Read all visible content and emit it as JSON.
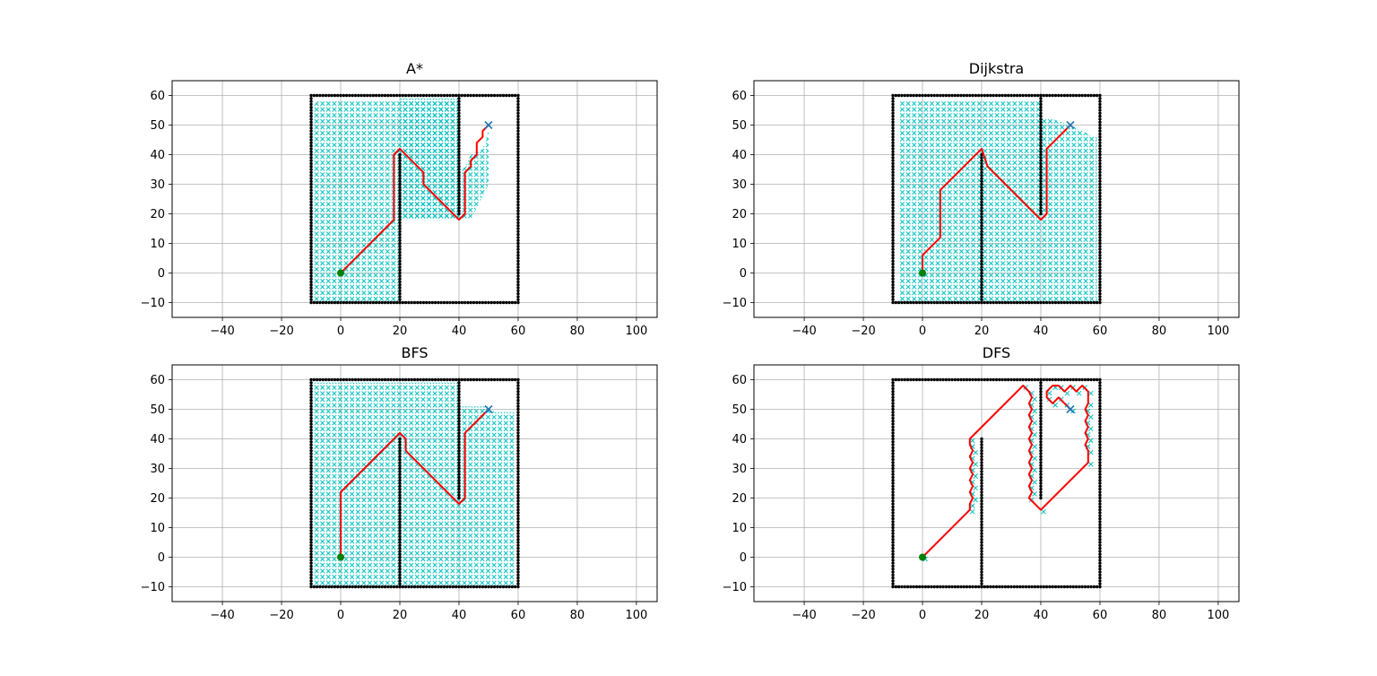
{
  "colors": {
    "obstacle": "#000000",
    "explored": "#00bfbf",
    "path": "#ff0000",
    "start": "#008000",
    "goal": "#1f77b4",
    "grid": "#b0b0b0"
  },
  "chart_data": [
    {
      "type": "scatter",
      "title": "A*",
      "xlim": [
        -57,
        107
      ],
      "ylim": [
        -15,
        65
      ],
      "xticks": [
        -40,
        -20,
        0,
        20,
        40,
        60,
        80,
        100
      ],
      "yticks": [
        -10,
        0,
        10,
        20,
        30,
        40,
        50,
        60
      ],
      "grid": true,
      "start": [
        0,
        0
      ],
      "goal": [
        50,
        50
      ],
      "explored_regions": [
        [
          [
            -10,
            -10
          ],
          [
            -10,
            56
          ],
          [
            -8,
            58
          ],
          [
            40,
            58
          ],
          [
            40,
            18
          ],
          [
            44,
            18
          ],
          [
            46,
            22
          ],
          [
            48,
            26
          ],
          [
            50,
            30
          ],
          [
            50,
            48
          ],
          [
            48,
            42
          ],
          [
            44,
            40
          ],
          [
            42,
            36
          ],
          [
            40,
            34
          ],
          [
            40,
            18
          ],
          [
            20,
            18
          ],
          [
            20,
            -10
          ]
        ],
        [
          [
            20,
            18
          ],
          [
            40,
            18
          ],
          [
            40,
            59
          ],
          [
            20,
            59
          ]
        ]
      ],
      "path": [
        [
          0,
          0
        ],
        [
          18,
          18
        ],
        [
          18,
          40
        ],
        [
          20,
          42
        ],
        [
          28,
          34
        ],
        [
          28,
          30
        ],
        [
          40,
          18
        ],
        [
          42,
          20
        ],
        [
          42,
          34
        ],
        [
          44,
          36
        ],
        [
          44,
          38
        ],
        [
          46,
          40
        ],
        [
          46,
          44
        ],
        [
          48,
          46
        ],
        [
          48,
          48
        ],
        [
          50,
          50
        ]
      ]
    },
    {
      "type": "scatter",
      "title": "Dijkstra",
      "xlim": [
        -57,
        107
      ],
      "ylim": [
        -15,
        65
      ],
      "xticks": [
        -40,
        -20,
        0,
        20,
        40,
        60,
        80,
        100
      ],
      "yticks": [
        -10,
        0,
        10,
        20,
        30,
        40,
        50,
        60
      ],
      "grid": true,
      "start": [
        0,
        0
      ],
      "goal": [
        50,
        50
      ],
      "explored_regions": [
        [
          [
            -8,
            -10
          ],
          [
            -8,
            58
          ],
          [
            40,
            58
          ],
          [
            40,
            -10
          ]
        ],
        [
          [
            40,
            -10
          ],
          [
            40,
            52
          ],
          [
            44,
            52
          ],
          [
            50,
            50
          ],
          [
            54,
            48
          ],
          [
            58,
            46
          ],
          [
            59,
            46
          ],
          [
            59,
            -10
          ]
        ]
      ],
      "path": [
        [
          0,
          0
        ],
        [
          0,
          6
        ],
        [
          6,
          12
        ],
        [
          6,
          28
        ],
        [
          20,
          42
        ],
        [
          22,
          36
        ],
        [
          40,
          18
        ],
        [
          42,
          20
        ],
        [
          42,
          42
        ],
        [
          50,
          50
        ]
      ]
    },
    {
      "type": "scatter",
      "title": "BFS",
      "xlim": [
        -57,
        107
      ],
      "ylim": [
        -15,
        65
      ],
      "xticks": [
        -40,
        -20,
        0,
        20,
        40,
        60,
        80,
        100
      ],
      "yticks": [
        -10,
        0,
        10,
        20,
        30,
        40,
        50,
        60
      ],
      "grid": true,
      "start": [
        0,
        0
      ],
      "goal": [
        50,
        50
      ],
      "explored_regions": [
        [
          [
            -10,
            -10
          ],
          [
            -10,
            59
          ],
          [
            40,
            59
          ],
          [
            40,
            -10
          ]
        ],
        [
          [
            40,
            -10
          ],
          [
            40,
            51
          ],
          [
            50,
            51
          ],
          [
            52,
            49
          ],
          [
            59,
            49
          ],
          [
            59,
            -10
          ]
        ]
      ],
      "path": [
        [
          0,
          0
        ],
        [
          0,
          22
        ],
        [
          20,
          42
        ],
        [
          22,
          40
        ],
        [
          22,
          36
        ],
        [
          40,
          18
        ],
        [
          42,
          20
        ],
        [
          42,
          42
        ],
        [
          50,
          50
        ]
      ]
    },
    {
      "type": "scatter",
      "title": "DFS",
      "xlim": [
        -57,
        107
      ],
      "ylim": [
        -15,
        65
      ],
      "xticks": [
        -40,
        -20,
        0,
        20,
        40,
        60,
        80,
        100
      ],
      "yticks": [
        -10,
        0,
        10,
        20,
        30,
        40,
        50,
        60
      ],
      "grid": true,
      "start": [
        0,
        0
      ],
      "goal": [
        50,
        50
      ],
      "explored_regions": [],
      "path": [
        [
          0,
          0
        ],
        [
          16,
          16
        ],
        [
          16,
          18
        ],
        [
          17,
          20
        ],
        [
          16,
          22
        ],
        [
          17,
          24
        ],
        [
          16,
          26
        ],
        [
          17,
          28
        ],
        [
          16,
          30
        ],
        [
          17,
          32
        ],
        [
          16,
          34
        ],
        [
          17,
          36
        ],
        [
          16,
          38
        ],
        [
          16,
          40
        ],
        [
          34,
          58
        ],
        [
          36,
          56
        ],
        [
          37,
          54
        ],
        [
          36,
          52
        ],
        [
          37,
          50
        ],
        [
          36,
          48
        ],
        [
          37,
          46
        ],
        [
          36,
          44
        ],
        [
          37,
          42
        ],
        [
          36,
          40
        ],
        [
          37,
          38
        ],
        [
          36,
          36
        ],
        [
          37,
          34
        ],
        [
          36,
          32
        ],
        [
          37,
          30
        ],
        [
          36,
          28
        ],
        [
          37,
          26
        ],
        [
          36,
          24
        ],
        [
          37,
          22
        ],
        [
          36,
          20
        ],
        [
          40,
          16
        ],
        [
          56,
          32
        ],
        [
          56,
          36
        ],
        [
          55,
          38
        ],
        [
          56,
          40
        ],
        [
          55,
          42
        ],
        [
          56,
          44
        ],
        [
          55,
          46
        ],
        [
          56,
          48
        ],
        [
          55,
          50
        ],
        [
          56,
          52
        ],
        [
          56,
          56
        ],
        [
          54,
          58
        ],
        [
          52,
          56
        ],
        [
          50,
          58
        ],
        [
          48,
          56
        ],
        [
          46,
          58
        ],
        [
          44,
          58
        ],
        [
          42,
          56
        ],
        [
          42,
          54
        ],
        [
          44,
          52
        ],
        [
          46,
          54
        ],
        [
          48,
          52
        ],
        [
          50,
          50
        ]
      ]
    }
  ]
}
